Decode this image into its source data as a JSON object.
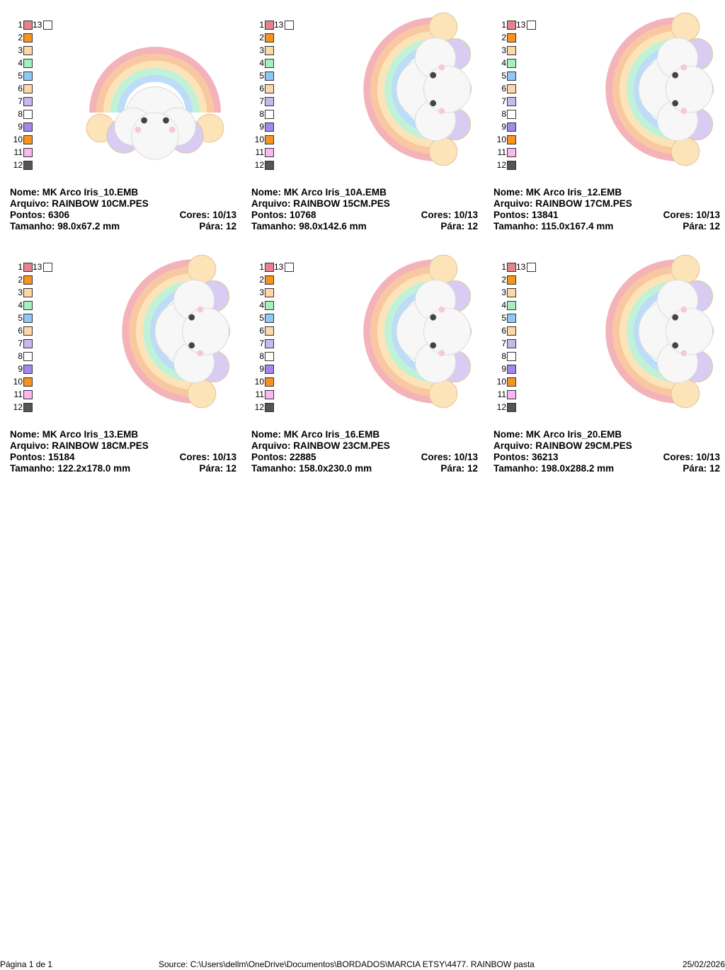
{
  "colors": [
    "#e4828e",
    "#f7931e",
    "#fdd7a8",
    "#a5f0c0",
    "#8fc8f5",
    "#fdd7a8",
    "#c9b8f0",
    "#ffffff",
    "#a585ee",
    "#f7931e",
    "#fbb8f0",
    "#555555"
  ],
  "designs": [
    {
      "nome_label": "Nome:",
      "nome": "MK Arco Iris_10.EMB",
      "arquivo_label": "Arquivo:",
      "arquivo": "RAINBOW 10CM.PES",
      "pontos_label": "Pontos:",
      "pontos": "6306",
      "cores_label": "Cores:",
      "cores": "10/13",
      "tamanho_label": "Tamanho:",
      "tamanho": "98.0x67.2 mm",
      "para_label": "Pára:",
      "para": "12"
    },
    {
      "nome_label": "Nome:",
      "nome": "MK Arco Iris_10A.EMB",
      "arquivo_label": "Arquivo:",
      "arquivo": "RAINBOW 15CM.PES",
      "pontos_label": "Pontos:",
      "pontos": "10768",
      "cores_label": "Cores:",
      "cores": "10/13",
      "tamanho_label": "Tamanho:",
      "tamanho": "98.0x142.6 mm",
      "para_label": "Pára:",
      "para": "12"
    },
    {
      "nome_label": "Nome:",
      "nome": "MK Arco Iris_12.EMB",
      "arquivo_label": "Arquivo:",
      "arquivo": "RAINBOW 17CM.PES",
      "pontos_label": "Pontos:",
      "pontos": "13841",
      "cores_label": "Cores:",
      "cores": "10/13",
      "tamanho_label": "Tamanho:",
      "tamanho": "115.0x167.4 mm",
      "para_label": "Pára:",
      "para": "12"
    },
    {
      "nome_label": "Nome:",
      "nome": "MK Arco Iris_13.EMB",
      "arquivo_label": "Arquivo:",
      "arquivo": "RAINBOW 18CM.PES",
      "pontos_label": "Pontos:",
      "pontos": "15184",
      "cores_label": "Cores:",
      "cores": "10/13",
      "tamanho_label": "Tamanho:",
      "tamanho": "122.2x178.0 mm",
      "para_label": "Pára:",
      "para": "12"
    },
    {
      "nome_label": "Nome:",
      "nome": "MK Arco Iris_16.EMB",
      "arquivo_label": "Arquivo:",
      "arquivo": "RAINBOW 23CM.PES",
      "pontos_label": "Pontos:",
      "pontos": "22885",
      "cores_label": "Cores:",
      "cores": "10/13",
      "tamanho_label": "Tamanho:",
      "tamanho": "158.0x230.0 mm",
      "para_label": "Pára:",
      "para": "12"
    },
    {
      "nome_label": "Nome:",
      "nome": "MK Arco Iris_20.EMB",
      "arquivo_label": "Arquivo:",
      "arquivo": "RAINBOW 29CM.PES",
      "pontos_label": "Pontos:",
      "pontos": "36213",
      "cores_label": "Cores:",
      "cores": "10/13",
      "tamanho_label": "Tamanho:",
      "tamanho": "198.0x288.2 mm",
      "para_label": "Pára:",
      "para": "12"
    }
  ],
  "footer": {
    "page": "Página 1 de 1",
    "source": "Source: C:\\Users\\dellm\\OneDrive\\Documentos\\BORDADOS\\MARCIA ETSY\\4477. RAINBOW pasta",
    "date": "25/02/2026"
  }
}
